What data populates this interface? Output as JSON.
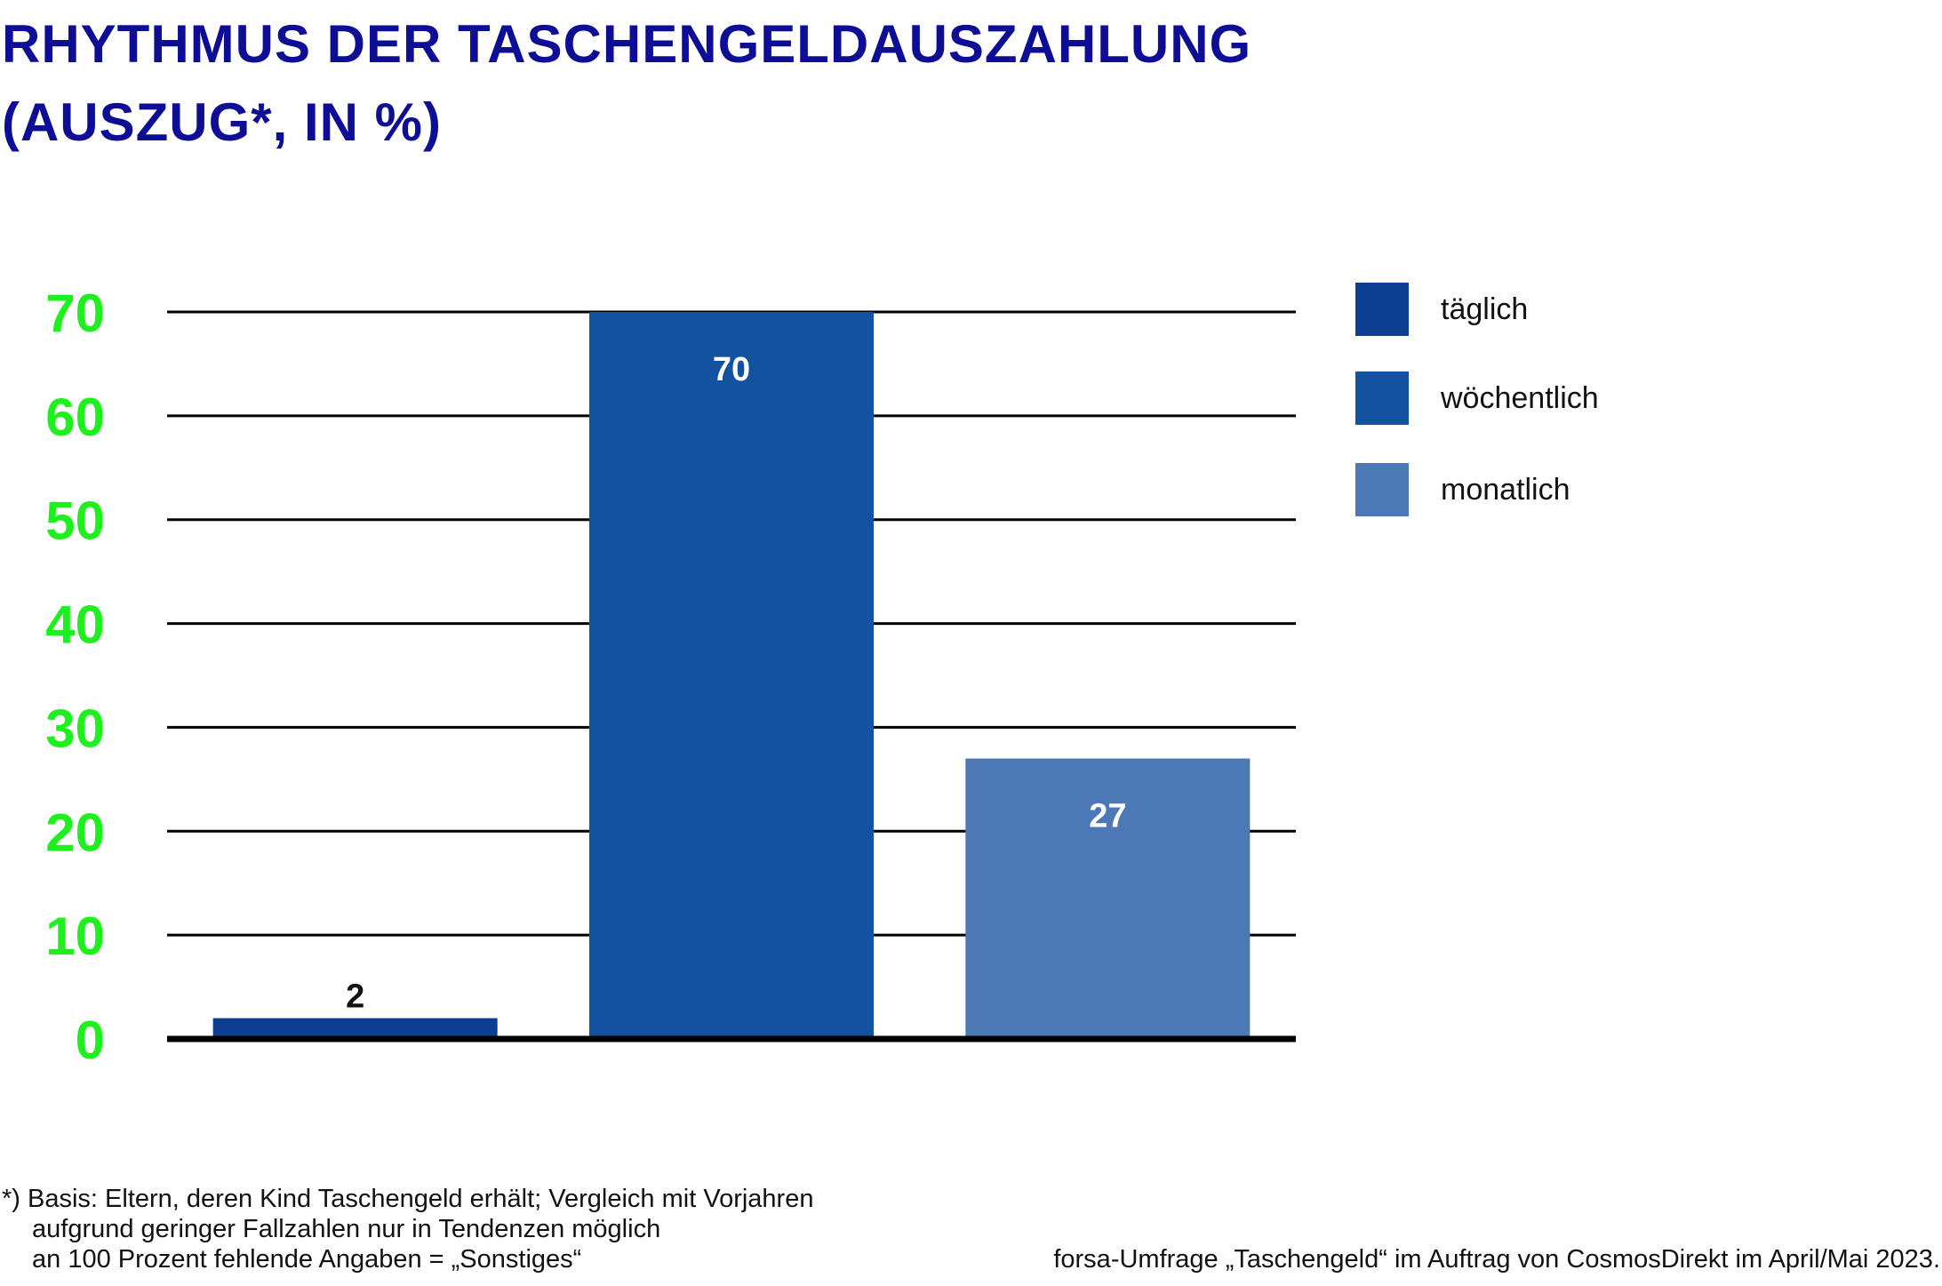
{
  "title": {
    "line1": "RHYTHMUS DER TASCHENGELDAUSZAHLUNG",
    "line2": "(AUSZUG*, IN %)"
  },
  "chart_data": {
    "type": "bar",
    "title": "RHYTHMUS DER TASCHENGELDAUSZAHLUNG (AUSZUG*, IN %)",
    "xlabel": "",
    "ylabel": "",
    "categories": [
      "täglich",
      "wöchentlich",
      "monatlich"
    ],
    "values": [
      2,
      70,
      27
    ],
    "ylim": [
      0,
      70
    ],
    "yticks": [
      "0",
      "10",
      "20",
      "30",
      "40",
      "50",
      "60",
      "70"
    ],
    "grid": true,
    "legend_placement": "right",
    "colors": [
      "#0c3f91",
      "#13529f",
      "#4c78b6"
    ],
    "label_colors": [
      "#111111",
      "#ffffff",
      "#ffffff"
    ],
    "tick_color": "#1ef01e"
  },
  "legend": {
    "items": [
      {
        "label": "täglich",
        "color": "#0c3f91"
      },
      {
        "label": "wöchentlich",
        "color": "#13529f"
      },
      {
        "label": "monatlich",
        "color": "#4c78b6"
      }
    ]
  },
  "footnote": {
    "line1": "*) Basis: Eltern, deren Kind Taschengeld erhält; Vergleich mit Vorjahren",
    "line2": "aufgrund geringer Fallzahlen nur in Tendenzen möglich",
    "line3": "an 100 Prozent fehlende Angaben = „Sonstiges“"
  },
  "source": "forsa-Umfrage „Taschengeld“ im Auftrag von CosmosDirekt im April/Mai 2023."
}
